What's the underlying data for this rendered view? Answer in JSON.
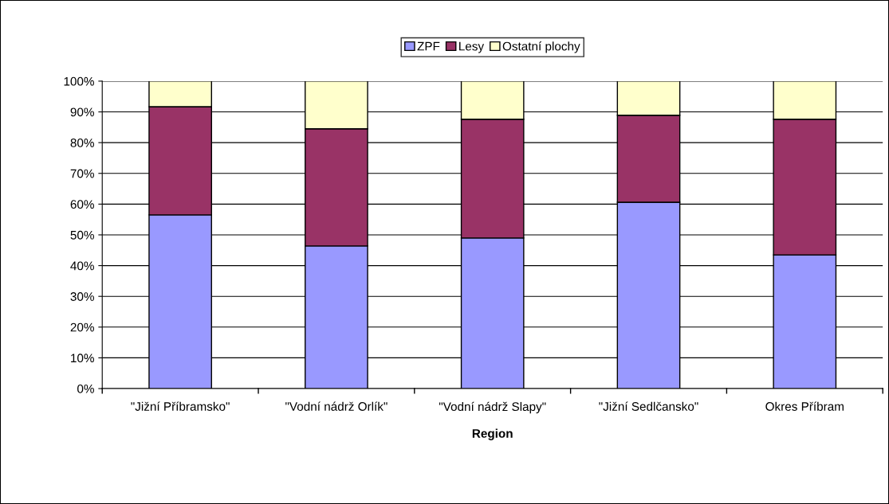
{
  "chart_data": {
    "type": "bar",
    "stacked": true,
    "xlabel": "Region",
    "categories": [
      "\"Jižní Příbramsko\"",
      "\"Vodní nádrž Orlík\"",
      "\"Vodní nádrž Slapy\"",
      "\"Jižní Sedlčansko\"",
      "Okres Příbram"
    ],
    "series": [
      {
        "name": "ZPF",
        "color": "#9999ff",
        "values": [
          56.5,
          46.4,
          49.0,
          60.6,
          43.5
        ]
      },
      {
        "name": "Lesy",
        "color": "#993366",
        "values": [
          35.2,
          38.1,
          38.6,
          28.3,
          44.1
        ]
      },
      {
        "name": "Ostatní plochy",
        "color": "#ffffcc",
        "values": [
          8.3,
          15.5,
          12.4,
          11.1,
          12.4
        ]
      }
    ],
    "ylim": [
      0,
      100
    ],
    "yticks": [
      {
        "value": 0,
        "label": "0%"
      },
      {
        "value": 10,
        "label": "10%"
      },
      {
        "value": 20,
        "label": "20%"
      },
      {
        "value": 30,
        "label": "30%"
      },
      {
        "value": 40,
        "label": "40%"
      },
      {
        "value": 50,
        "label": "50%"
      },
      {
        "value": 60,
        "label": "60%"
      },
      {
        "value": 70,
        "label": "70%"
      },
      {
        "value": 80,
        "label": "80%"
      },
      {
        "value": 90,
        "label": "90%"
      },
      {
        "value": 100,
        "label": "100%"
      }
    ],
    "grid": "y",
    "legend": "top"
  }
}
